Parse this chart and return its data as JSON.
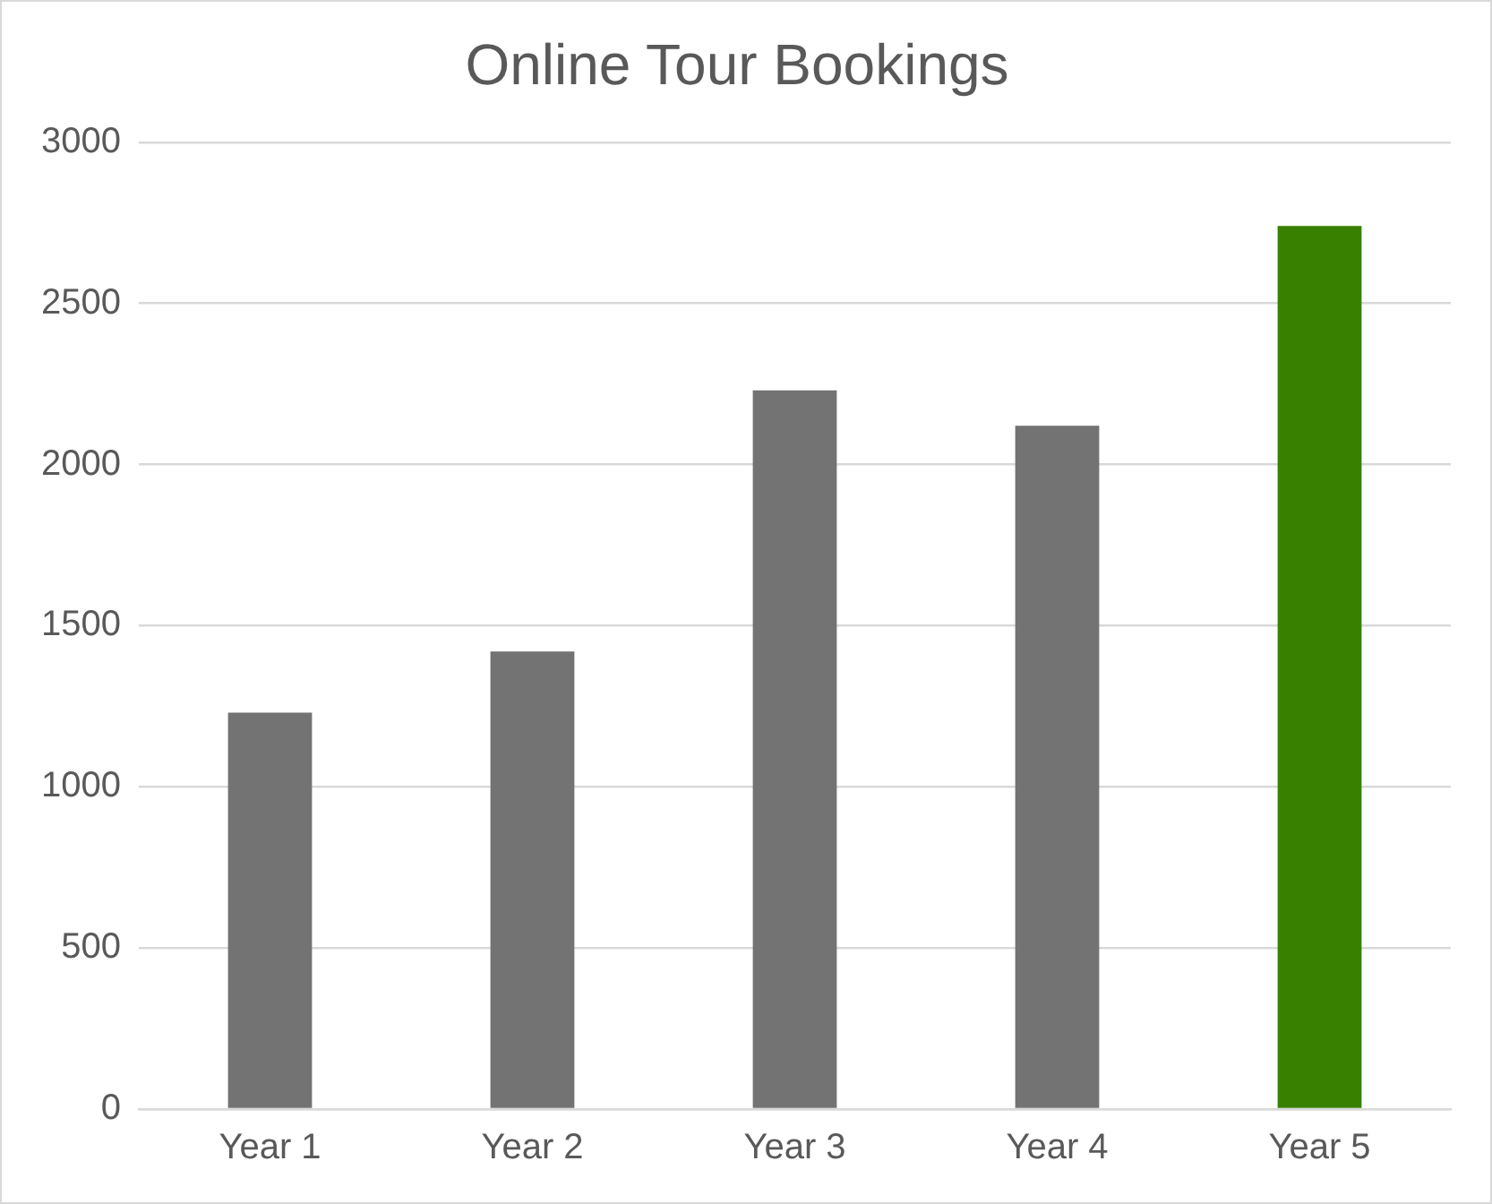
{
  "chart_data": {
    "type": "bar",
    "title": "Online Tour Bookings",
    "categories": [
      "Year 1",
      "Year 2",
      "Year 3",
      "Year 4",
      "Year 5"
    ],
    "values": [
      1230,
      1420,
      2230,
      2120,
      2740
    ],
    "colors": [
      "#737373",
      "#737373",
      "#737373",
      "#737373",
      "#388000"
    ],
    "ylim": [
      0,
      3000
    ],
    "yticks": [
      0,
      500,
      1000,
      1500,
      2000,
      2500,
      3000
    ],
    "grid": "y"
  }
}
